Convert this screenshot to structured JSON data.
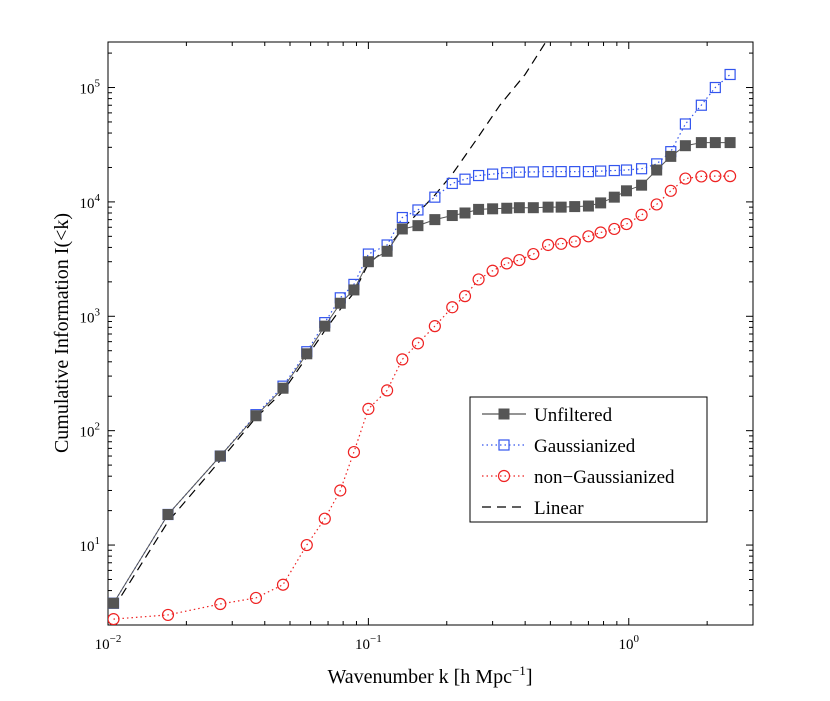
{
  "chart_data": {
    "type": "line",
    "xscale": "log",
    "yscale": "log",
    "xlim": [
      0.01,
      3.0
    ],
    "ylim": [
      2.0,
      250000
    ],
    "xlabel": "Wavenumber k [h Mpc",
    "xlabel_sup": "−1",
    "xlabel_end": "]",
    "ylabel": "Cumulative Information I(<k)",
    "x_ticks": [
      {
        "value": 0.01,
        "base": "10",
        "exp": "−2"
      },
      {
        "value": 0.1,
        "base": "10",
        "exp": "−1"
      },
      {
        "value": 1,
        "base": "10",
        "exp": "0"
      }
    ],
    "y_ticks": [
      {
        "value": 10,
        "base": "10",
        "exp": "1"
      },
      {
        "value": 100,
        "base": "10",
        "exp": "2"
      },
      {
        "value": 1000,
        "base": "10",
        "exp": "3"
      },
      {
        "value": 10000,
        "base": "10",
        "exp": "4"
      },
      {
        "value": 100000,
        "base": "10",
        "exp": "5"
      }
    ],
    "legend_position": "right-middle",
    "series": [
      {
        "name": "Unfiltered",
        "color": "#555555",
        "marker": "filled-square",
        "line": "solid",
        "x": [
          0.0105,
          0.017,
          0.027,
          0.037,
          0.047,
          0.058,
          0.068,
          0.078,
          0.088,
          0.1,
          0.118,
          0.135,
          0.155,
          0.18,
          0.21,
          0.235,
          0.265,
          0.3,
          0.34,
          0.38,
          0.43,
          0.49,
          0.55,
          0.62,
          0.7,
          0.78,
          0.88,
          0.98,
          1.12,
          1.28,
          1.45,
          1.65,
          1.9,
          2.15,
          2.45
        ],
        "y": [
          3.1,
          18.5,
          60,
          135,
          235,
          470,
          820,
          1300,
          1700,
          3000,
          3700,
          5800,
          6200,
          7000,
          7600,
          8000,
          8600,
          8700,
          8800,
          8900,
          8900,
          9000,
          9000,
          9100,
          9200,
          9800,
          11000,
          12500,
          14000,
          19000,
          25000,
          31000,
          33000,
          33000,
          33000
        ]
      },
      {
        "name": "Gaussianized",
        "color": "#3355ee",
        "marker": "open-square",
        "line": "dotted",
        "x": [
          0.0105,
          0.017,
          0.027,
          0.037,
          0.047,
          0.058,
          0.068,
          0.078,
          0.088,
          0.1,
          0.118,
          0.135,
          0.155,
          0.18,
          0.21,
          0.235,
          0.265,
          0.3,
          0.34,
          0.38,
          0.43,
          0.49,
          0.55,
          0.62,
          0.7,
          0.78,
          0.88,
          0.98,
          1.12,
          1.28,
          1.45,
          1.65,
          1.9,
          2.15,
          2.45
        ],
        "y": [
          3.1,
          18.5,
          60,
          138,
          245,
          490,
          880,
          1450,
          1900,
          3500,
          4200,
          7300,
          8500,
          11000,
          14500,
          15800,
          17000,
          17500,
          18000,
          18200,
          18300,
          18400,
          18400,
          18400,
          18400,
          18600,
          18800,
          19000,
          19500,
          21500,
          27500,
          48000,
          70000,
          100000,
          130000
        ]
      },
      {
        "name": "non−Gaussianized",
        "color": "#ee2222",
        "marker": "open-circle",
        "line": "dotted",
        "x": [
          0.0105,
          0.017,
          0.027,
          0.037,
          0.047,
          0.058,
          0.068,
          0.078,
          0.088,
          0.1,
          0.118,
          0.135,
          0.155,
          0.18,
          0.21,
          0.235,
          0.265,
          0.3,
          0.34,
          0.38,
          0.43,
          0.49,
          0.55,
          0.62,
          0.7,
          0.78,
          0.88,
          0.98,
          1.12,
          1.28,
          1.45,
          1.65,
          1.9,
          2.15,
          2.45
        ],
        "y": [
          2.25,
          2.45,
          3.05,
          3.45,
          4.5,
          10,
          17,
          30,
          65,
          155,
          225,
          420,
          580,
          820,
          1200,
          1500,
          2100,
          2500,
          2900,
          3100,
          3500,
          4200,
          4300,
          4500,
          5000,
          5400,
          5800,
          6400,
          7700,
          9500,
          12500,
          16000,
          16700,
          16800,
          16800
        ]
      },
      {
        "name": "Linear",
        "color": "#000000",
        "marker": "none",
        "line": "dashed",
        "x": [
          0.0105,
          0.017,
          0.027,
          0.037,
          0.047,
          0.058,
          0.068,
          0.078,
          0.088,
          0.1,
          0.118,
          0.135,
          0.155,
          0.18,
          0.21,
          0.26,
          0.32,
          0.4,
          0.48
        ],
        "y": [
          2.8,
          16,
          55,
          130,
          220,
          440,
          750,
          1150,
          1600,
          2900,
          3900,
          5800,
          8000,
          11500,
          17500,
          35000,
          70000,
          130000,
          250000
        ]
      }
    ]
  }
}
